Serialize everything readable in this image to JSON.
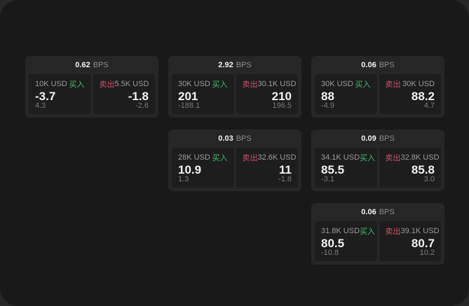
{
  "labels": {
    "bps": "BPS",
    "buy": "买入",
    "sell": "卖出"
  },
  "colors": {
    "buy_green": "#3fbd6d",
    "sell_red": "#c9506a",
    "screen_bg": "#191919",
    "card_bg": "#262626",
    "panel_bg": "#1d1d1d"
  },
  "cards": [
    {
      "col": 0,
      "row": 0,
      "bps": "0.62",
      "buy": {
        "notional": "10K USD",
        "value": "-3.7",
        "sub": "4.3"
      },
      "sell": {
        "notional": "5.5K USD",
        "value": "-1.8",
        "sub": "-2.6"
      }
    },
    {
      "col": 1,
      "row": 0,
      "bps": "2.92",
      "buy": {
        "notional": "30K USD",
        "value": "201",
        "sub": "-188.1"
      },
      "sell": {
        "notional": "30.1K USD",
        "value": "210",
        "sub": "196.5"
      }
    },
    {
      "col": 2,
      "row": 0,
      "bps": "0.06",
      "buy": {
        "notional": "30K USD",
        "value": "88",
        "sub": "-4.9"
      },
      "sell": {
        "notional": "30K USD",
        "value": "88.2",
        "sub": "4.7"
      }
    },
    {
      "col": 1,
      "row": 1,
      "bps": "0.03",
      "buy": {
        "notional": "28K USD",
        "value": "10.9",
        "sub": "1.3"
      },
      "sell": {
        "notional": "32.6K USD",
        "value": "11",
        "sub": "-1.8"
      }
    },
    {
      "col": 2,
      "row": 1,
      "bps": "0.09",
      "buy": {
        "notional": "34.1K USD",
        "value": "85.5",
        "sub": "-3.1"
      },
      "sell": {
        "notional": "32.8K USD",
        "value": "85.8",
        "sub": "3.0"
      }
    },
    {
      "col": 2,
      "row": 2,
      "bps": "0.06",
      "buy": {
        "notional": "31.8K USD",
        "value": "80.5",
        "sub": "-10.8"
      },
      "sell": {
        "notional": "39.1K USD",
        "value": "80.7",
        "sub": "10.2"
      }
    }
  ]
}
